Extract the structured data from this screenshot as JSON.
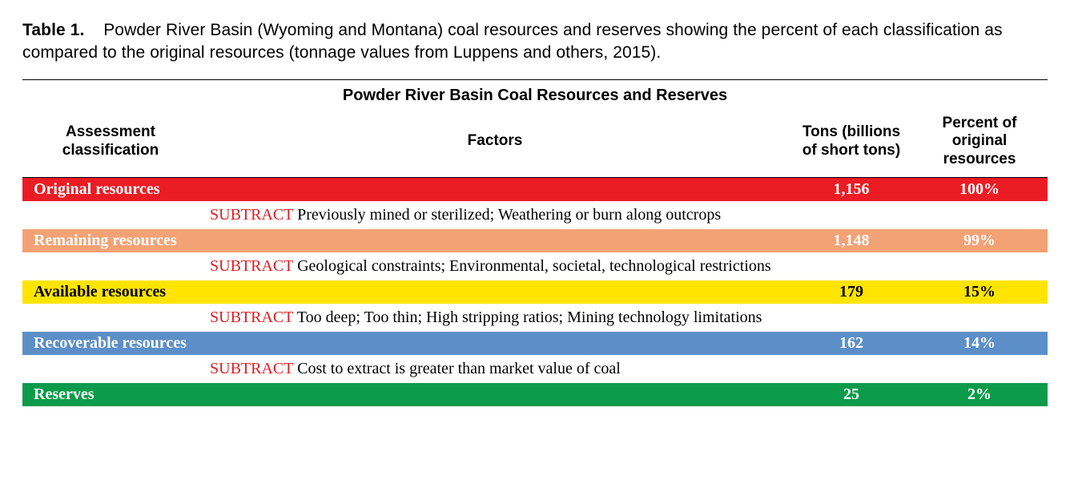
{
  "caption": {
    "label": "Table 1.",
    "text": "Powder River Basin (Wyoming and Montana) coal resources and reserves showing the percent of each classification as compared to the original resources (tonnage values from Luppens and others, 2015)."
  },
  "table": {
    "title": "Powder River Basin Coal Resources and Reserves",
    "headers": {
      "classification": "Assessment classification",
      "factors": "Factors",
      "tons": "Tons (billions of short tons)",
      "percent": "Percent of original resources"
    },
    "subtract_word": "SUBTRACT",
    "rows": [
      {
        "type": "class",
        "classification": "Original resources",
        "tons": "1,156",
        "percent": "100%",
        "bg": "#ec1c24"
      },
      {
        "type": "factor",
        "text": "Previously mined or sterilized; Weathering or burn along outcrops"
      },
      {
        "type": "class",
        "classification": "Remaining resources",
        "tons": "1,148",
        "percent": "99%",
        "bg": "#f3a275"
      },
      {
        "type": "factor",
        "text": "Geological constraints; Environmental, societal, technological restrictions"
      },
      {
        "type": "class",
        "classification": "Available resources",
        "tons": "179",
        "percent": "15%",
        "bg": "#ffe400",
        "text_color": "#000000"
      },
      {
        "type": "factor",
        "text": "Too deep; Too thin; High stripping ratios; Mining technology limitations"
      },
      {
        "type": "class",
        "classification": "Recoverable resources",
        "tons": "162",
        "percent": "14%",
        "bg": "#5c8fc7"
      },
      {
        "type": "factor",
        "text": "Cost to extract is greater than market value of coal"
      },
      {
        "type": "class",
        "classification": "Reserves",
        "tons": "25",
        "percent": "2%",
        "bg": "#0b9b4a"
      }
    ]
  }
}
